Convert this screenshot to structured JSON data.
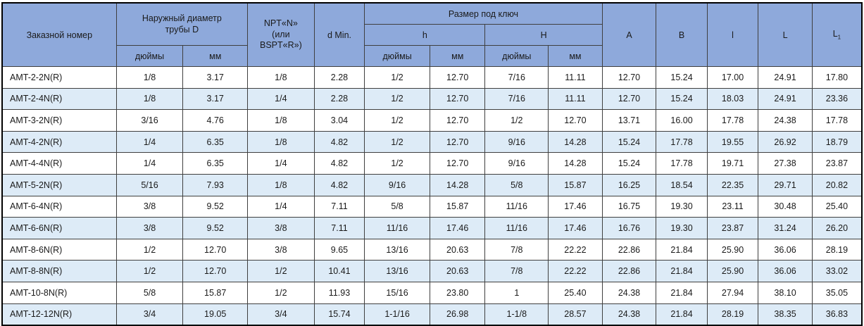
{
  "colors": {
    "header_bg": "#8EA9DB",
    "row_alt_bg": "#DDEBF7",
    "row_bg": "#FFFFFF",
    "inner_border": "#3F3F3F",
    "outer_border": "#000000"
  },
  "table": {
    "header": {
      "order_number": "Заказной номер",
      "outer_diameter": {
        "title_lines": [
          "Наружный диаметр",
          "трубы D"
        ]
      },
      "npt": {
        "lines": [
          "NPT«N»",
          "(или",
          "BSPT«R»)"
        ]
      },
      "d_min": "d Min.",
      "wrench": {
        "title": "Размер под ключ",
        "groups": [
          {
            "label": "h"
          },
          {
            "label": "H"
          }
        ]
      },
      "units": {
        "inches": "дюймы",
        "mm": "мм"
      },
      "a": "A",
      "b": "B",
      "l_small": "l",
      "l_big": "L",
      "l1": {
        "base": "L",
        "sub": "1"
      }
    },
    "rows": [
      {
        "order": "AMT-2-2N(R)",
        "values": [
          "1/8",
          "3.17",
          "1/8",
          "2.28",
          "1/2",
          "12.70",
          "7/16",
          "11.11",
          "12.70",
          "15.24",
          "17.00",
          "24.91",
          "17.80"
        ]
      },
      {
        "order": "AMT-2-4N(R)",
        "values": [
          "1/8",
          "3.17",
          "1/4",
          "2.28",
          "1/2",
          "12.70",
          "7/16",
          "11.11",
          "12.70",
          "15.24",
          "18.03",
          "24.91",
          "23.36"
        ]
      },
      {
        "order": "AMT-3-2N(R)",
        "values": [
          "3/16",
          "4.76",
          "1/8",
          "3.04",
          "1/2",
          "12.70",
          "1/2",
          "12.70",
          "13.71",
          "16.00",
          "17.78",
          "24.38",
          "17.78"
        ]
      },
      {
        "order": "AMT-4-2N(R)",
        "values": [
          "1/4",
          "6.35",
          "1/8",
          "4.82",
          "1/2",
          "12.70",
          "9/16",
          "14.28",
          "15.24",
          "17.78",
          "19.55",
          "26.92",
          "18.79"
        ]
      },
      {
        "order": "AMT-4-4N(R)",
        "values": [
          "1/4",
          "6.35",
          "1/4",
          "4.82",
          "1/2",
          "12.70",
          "9/16",
          "14.28",
          "15.24",
          "17.78",
          "19.71",
          "27.38",
          "23.87"
        ]
      },
      {
        "order": "AMT-5-2N(R)",
        "values": [
          "5/16",
          "7.93",
          "1/8",
          "4.82",
          "9/16",
          "14.28",
          "5/8",
          "15.87",
          "16.25",
          "18.54",
          "22.35",
          "29.71",
          "20.82"
        ]
      },
      {
        "order": "AMT-6-4N(R)",
        "values": [
          "3/8",
          "9.52",
          "1/4",
          "7.11",
          "5/8",
          "15.87",
          "11/16",
          "17.46",
          "16.75",
          "19.30",
          "23.11",
          "30.48",
          "25.40"
        ]
      },
      {
        "order": "AMT-6-6N(R)",
        "values": [
          "3/8",
          "9.52",
          "3/8",
          "7.11",
          "11/16",
          "17.46",
          "11/16",
          "17.46",
          "16.76",
          "19.30",
          "23.87",
          "31.24",
          "26.20"
        ]
      },
      {
        "order": "AMT-8-6N(R)",
        "values": [
          "1/2",
          "12.70",
          "3/8",
          "9.65",
          "13/16",
          "20.63",
          "7/8",
          "22.22",
          "22.86",
          "21.84",
          "25.90",
          "36.06",
          "28.19"
        ]
      },
      {
        "order": "AMT-8-8N(R)",
        "values": [
          "1/2",
          "12.70",
          "1/2",
          "10.41",
          "13/16",
          "20.63",
          "7/8",
          "22.22",
          "22.86",
          "21.84",
          "25.90",
          "36.06",
          "33.02"
        ]
      },
      {
        "order": "AMT-10-8N(R)",
        "values": [
          "5/8",
          "15.87",
          "1/2",
          "11.93",
          "15/16",
          "23.80",
          "1",
          "25.40",
          "24.38",
          "21.84",
          "27.94",
          "38.10",
          "35.05"
        ]
      },
      {
        "order": "AMT-12-12N(R)",
        "values": [
          "3/4",
          "19.05",
          "3/4",
          "15.74",
          "1-1/16",
          "26.98",
          "1-1/8",
          "28.57",
          "24.38",
          "21.84",
          "28.19",
          "38.35",
          "36.83"
        ]
      }
    ]
  }
}
